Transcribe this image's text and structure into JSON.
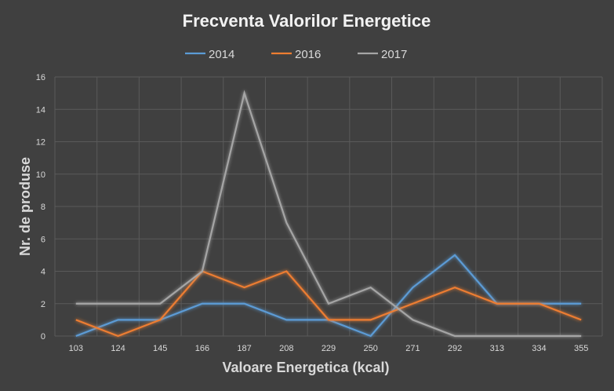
{
  "chart_data": {
    "type": "line",
    "title": "Frecventa Valorilor Energetice",
    "xlabel": "Valoare  Energetica (kcal)",
    "ylabel": "Nr. de produse",
    "categories": [
      "103",
      "124",
      "145",
      "166",
      "187",
      "208",
      "229",
      "250",
      "271",
      "292",
      "313",
      "334",
      "355"
    ],
    "ylim": [
      0,
      16
    ],
    "yticks": [
      0,
      2,
      4,
      6,
      8,
      10,
      12,
      14,
      16
    ],
    "grid": true,
    "legend_position": "top",
    "series": [
      {
        "name": "2014",
        "color": "#5b9bd5",
        "values": [
          0,
          1,
          1,
          2,
          2,
          1,
          1,
          0,
          3,
          5,
          2,
          2,
          2
        ]
      },
      {
        "name": "2016",
        "color": "#ed7d31",
        "values": [
          1,
          0,
          1,
          4,
          3,
          4,
          1,
          1,
          2,
          3,
          2,
          2,
          1
        ]
      },
      {
        "name": "2017",
        "color": "#a5a5a5",
        "values": [
          2,
          2,
          2,
          4,
          15,
          7,
          2,
          3,
          1,
          0,
          0,
          0,
          0
        ]
      }
    ]
  }
}
